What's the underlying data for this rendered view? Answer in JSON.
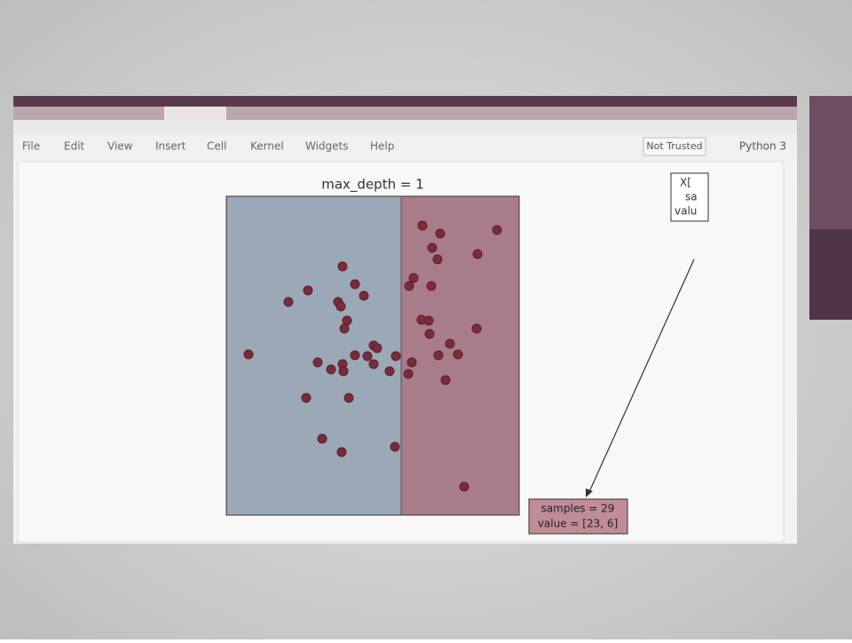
{
  "menu": {
    "items": [
      "File",
      "Edit",
      "View",
      "Insert",
      "Cell",
      "Kernel",
      "Widgets",
      "Help"
    ],
    "trust": "Not Trusted",
    "kernel": "Python 3"
  },
  "plot": {
    "title": "max_depth = 1"
  },
  "tree_nodes": [
    {
      "lines": [
        "X[",
        "sa",
        "valu"
      ]
    },
    {
      "lines": [
        "samples = 29",
        "value = [23, 6]"
      ]
    }
  ]
}
